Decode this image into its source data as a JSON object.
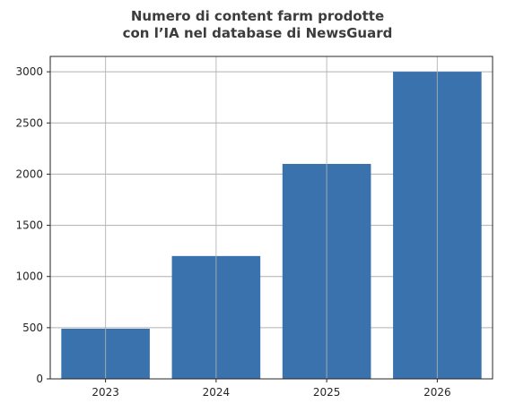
{
  "chart_data": {
    "type": "bar",
    "title": [
      "Numero di content farm prodotte",
      "con l’IA nel database di NewsGuard"
    ],
    "xlabel": "",
    "ylabel": "",
    "categories": [
      "2023",
      "2024",
      "2025",
      "2026"
    ],
    "values": [
      490,
      1200,
      2100,
      3000
    ],
    "ylim": [
      0,
      3150
    ],
    "yticks": [
      0,
      500,
      1000,
      1500,
      2000,
      2500,
      3000
    ],
    "ytick_labels": [
      "0",
      "500",
      "1000",
      "1500",
      "2000",
      "2500",
      "3000"
    ],
    "grid": true,
    "bar_color": "#3a72ad",
    "grid_color": "#b0b0b0"
  }
}
